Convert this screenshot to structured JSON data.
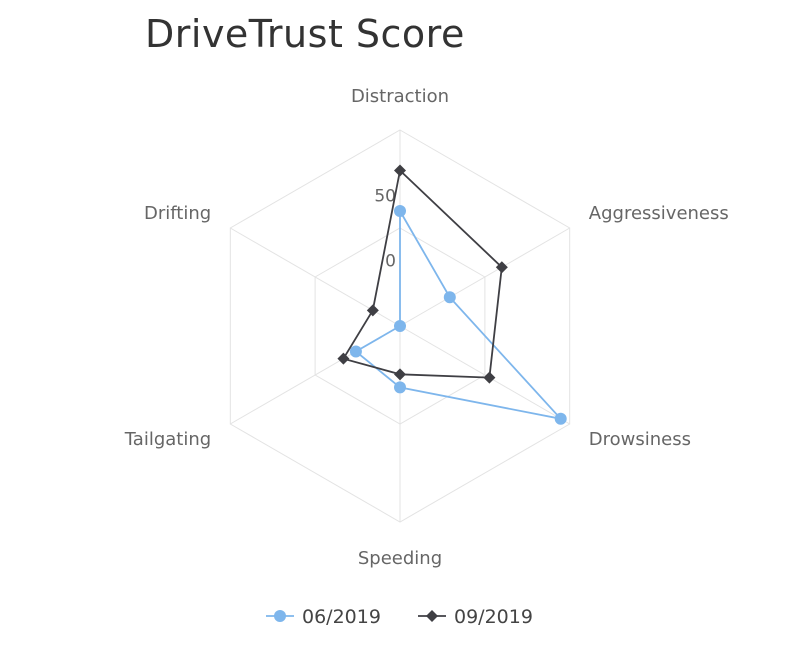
{
  "chart_data": {
    "type": "radar",
    "title": "DriveTrust Score",
    "categories": [
      "Distraction",
      "Aggressiveness",
      "Drowsiness",
      "Speeding",
      "Tailgating",
      "Drifting"
    ],
    "tick_labels": [
      "0",
      "50"
    ],
    "range": [
      -50,
      100
    ],
    "series": [
      {
        "name": "06/2019",
        "values": [
          38,
          -6,
          92,
          -3,
          -11,
          -50
        ],
        "color": "#7eb6ec",
        "marker": "circle"
      },
      {
        "name": "09/2019",
        "values": [
          69,
          40,
          29,
          -13,
          0,
          -26
        ],
        "color": "#3f3f44",
        "marker": "diamond"
      }
    ],
    "grid": true,
    "legend": "bottom"
  }
}
